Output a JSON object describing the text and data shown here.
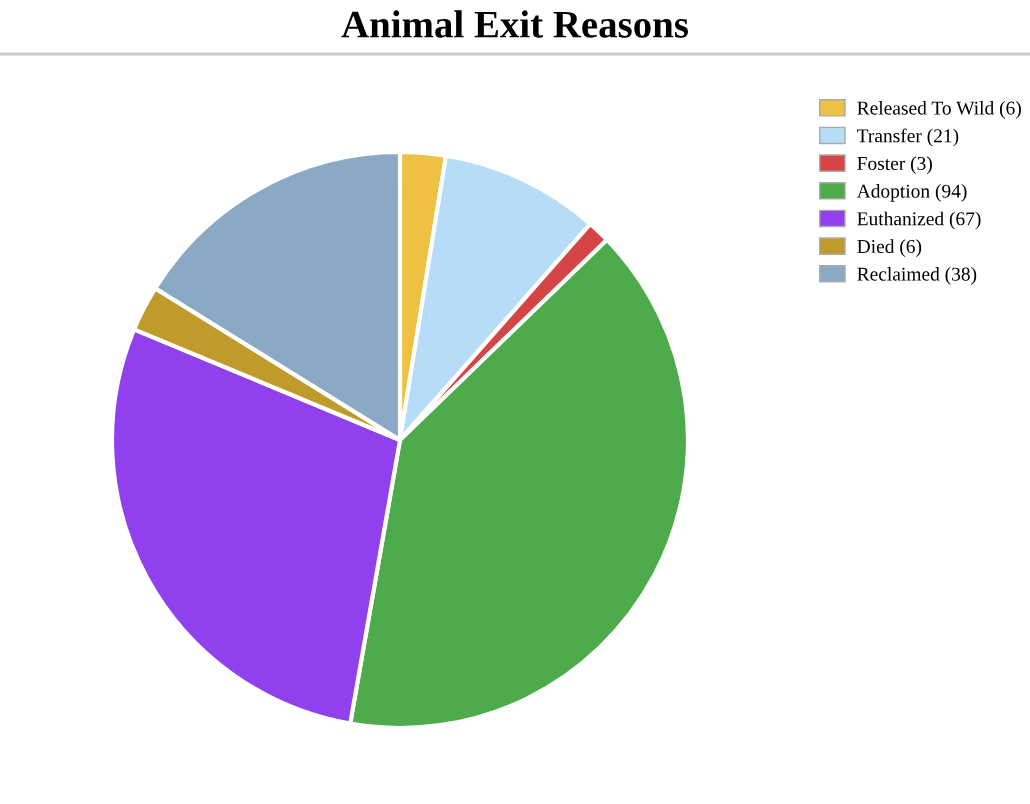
{
  "chart_data": {
    "type": "pie",
    "title": "Animal Exit Reasons",
    "categories": [
      "Released To Wild (6)",
      "Transfer (21)",
      "Foster (3)",
      "Adoption (94)",
      "Euthanized (67)",
      "Died (6)",
      "Reclaimed (38)"
    ],
    "values": [
      6,
      21,
      3,
      94,
      67,
      6,
      38
    ],
    "colors": [
      "#efc143",
      "#b7dcf7",
      "#d64545",
      "#4eab4b",
      "#9140ee",
      "#c09a2a",
      "#8aa9c5"
    ],
    "legend": "right"
  }
}
